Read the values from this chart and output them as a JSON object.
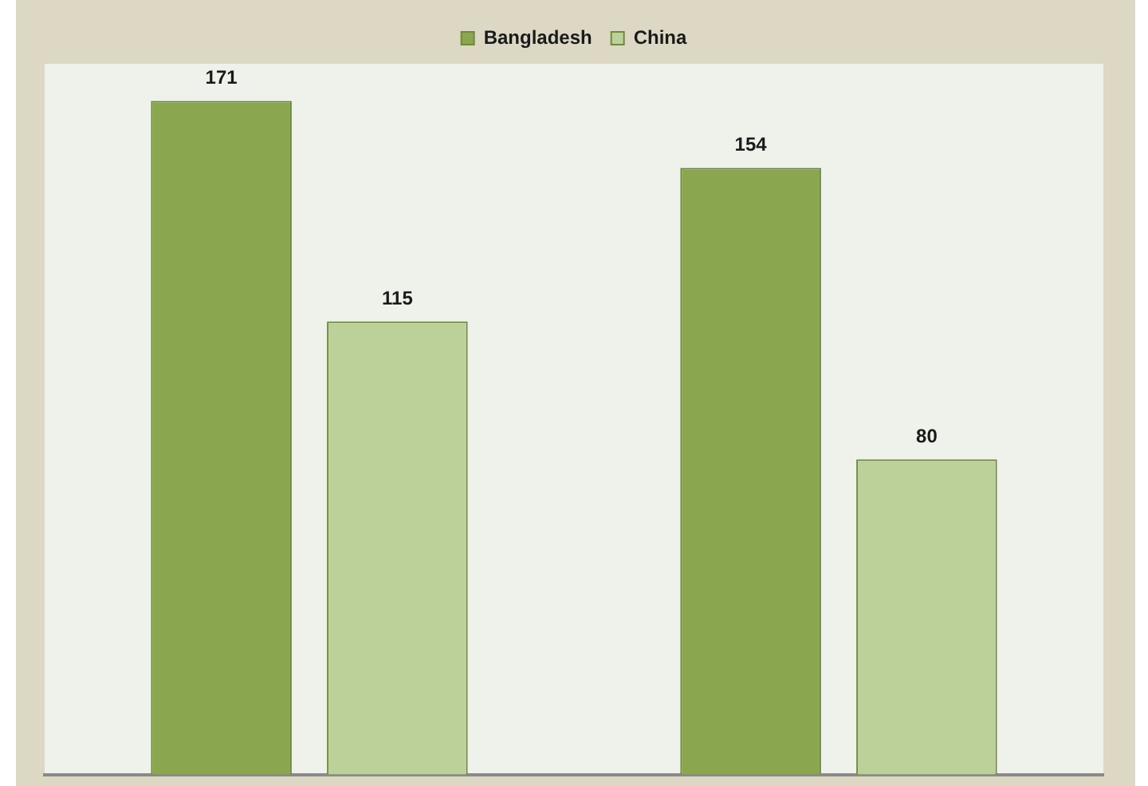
{
  "chart_data": {
    "type": "bar",
    "categories": [
      null,
      null
    ],
    "series": [
      {
        "name": "Bangladesh",
        "color": "#8aa64e",
        "values": [
          171,
          154
        ]
      },
      {
        "name": "China",
        "color": "#bcd09a",
        "values": [
          115,
          80
        ]
      }
    ],
    "data_labels": true,
    "legend": "top",
    "grid": false
  }
}
